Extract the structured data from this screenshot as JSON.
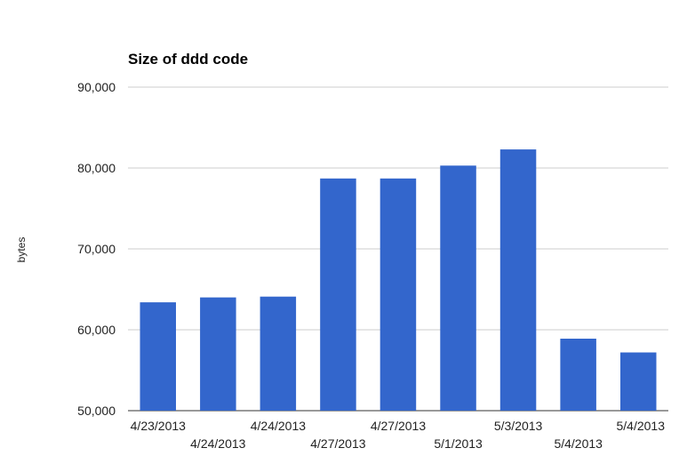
{
  "chart_data": {
    "type": "bar",
    "title": "Size of ddd code",
    "xlabel": "",
    "ylabel": "bytes",
    "categories": [
      "4/23/2013",
      "4/24/2013",
      "4/24/2013",
      "4/27/2013",
      "4/27/2013",
      "5/1/2013",
      "5/3/2013",
      "5/4/2013",
      "5/4/2013"
    ],
    "values": [
      63400,
      64000,
      64100,
      78700,
      78700,
      80300,
      82300,
      58900,
      57200
    ],
    "ylim": [
      50000,
      90000
    ],
    "yticks": [
      50000,
      60000,
      70000,
      80000,
      90000
    ],
    "ytick_labels": [
      "50,000",
      "60,000",
      "70,000",
      "80,000",
      "90,000"
    ],
    "bar_color": "#3366cc",
    "grid": true,
    "legend": "none"
  }
}
